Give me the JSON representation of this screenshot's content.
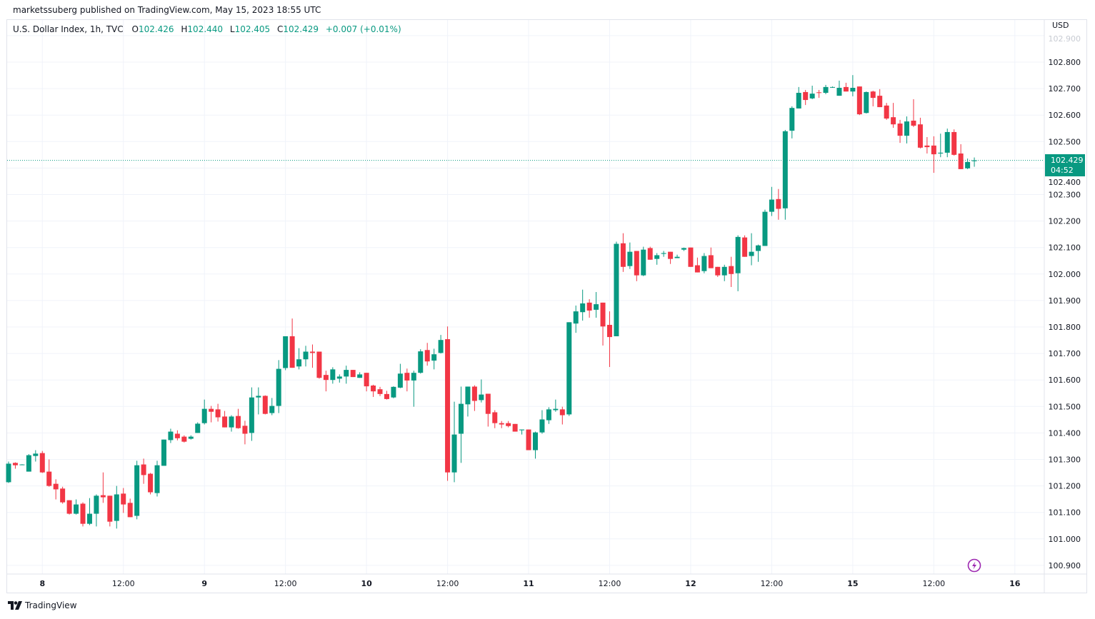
{
  "published": "marketssuberg published on TradingView.com, May 15, 2023 18:55 UTC",
  "legend": {
    "symbol": "U.S. Dollar Index, 1h, TVC",
    "o_label": "O",
    "o": "102.426",
    "h_label": "H",
    "h": "102.440",
    "l_label": "L",
    "l": "102.405",
    "c_label": "C",
    "c": "102.429",
    "change": "+0.007 (+0.01%)"
  },
  "price_axis": {
    "currency": "USD",
    "last_price": "102.429",
    "countdown": "04:52"
  },
  "brand": "TradingView",
  "icons": {
    "snapshot": "lightning-bolt-icon",
    "logo": "tradingview-logo-icon"
  },
  "colors": {
    "up": "#089981",
    "down": "#f23645",
    "grid": "#f0f3fa",
    "lightning": "#9c27b0"
  },
  "chart_data": {
    "type": "candlestick",
    "title": "U.S. Dollar Index, 1h, TVC",
    "ylim": [
      100.87,
      102.93
    ],
    "y_ticks": [
      "100.900",
      "101.000",
      "101.100",
      "101.200",
      "101.300",
      "101.400",
      "101.500",
      "101.600",
      "101.700",
      "101.800",
      "101.900",
      "102.000",
      "102.100",
      "102.200",
      "102.300",
      "102.400",
      "102.500",
      "102.600",
      "102.700",
      "102.800",
      "102.900"
    ],
    "x_ticks": [
      "8",
      "12:00",
      "9",
      "12:00",
      "10",
      "12:00",
      "11",
      "12:00",
      "12",
      "12:00",
      "15",
      "12:00",
      "16"
    ],
    "x_ticks_bold": [
      "8",
      "9",
      "10",
      "11",
      "12",
      "15",
      "16"
    ],
    "grid": true,
    "last_price_line": 102.429,
    "ohlc": [
      [
        101.214,
        101.292,
        101.211,
        101.284
      ],
      [
        101.287,
        101.289,
        101.265,
        101.278
      ],
      [
        101.28,
        101.282,
        101.279,
        101.281
      ],
      [
        101.254,
        101.32,
        101.254,
        101.316
      ],
      [
        101.313,
        101.335,
        101.292,
        101.322
      ],
      [
        101.324,
        101.332,
        101.249,
        101.251
      ],
      [
        101.254,
        101.3,
        101.197,
        101.2
      ],
      [
        101.208,
        101.225,
        101.149,
        101.187
      ],
      [
        101.19,
        101.197,
        101.133,
        101.138
      ],
      [
        101.146,
        101.146,
        101.092,
        101.095
      ],
      [
        101.095,
        101.149,
        101.092,
        101.13
      ],
      [
        101.133,
        101.138,
        101.047,
        101.057
      ],
      [
        101.057,
        101.154,
        101.052,
        101.095
      ],
      [
        101.095,
        101.168,
        101.047,
        101.163
      ],
      [
        101.165,
        101.251,
        101.136,
        101.157
      ],
      [
        101.163,
        101.163,
        101.047,
        101.065
      ],
      [
        101.068,
        101.2,
        101.039,
        101.168
      ],
      [
        101.171,
        101.192,
        101.098,
        101.13
      ],
      [
        101.136,
        101.152,
        101.082,
        101.082
      ],
      [
        101.087,
        101.295,
        101.074,
        101.278
      ],
      [
        101.281,
        101.303,
        101.208,
        101.241
      ],
      [
        101.246,
        101.249,
        101.168,
        101.176
      ],
      [
        101.173,
        101.295,
        101.16,
        101.278
      ],
      [
        101.276,
        101.375,
        101.276,
        101.375
      ],
      [
        101.373,
        101.416,
        101.362,
        101.405
      ],
      [
        101.397,
        101.41,
        101.372,
        101.38
      ],
      [
        101.386,
        101.391,
        101.364,
        101.367
      ],
      [
        101.378,
        101.391,
        101.375,
        101.386
      ],
      [
        101.4,
        101.44,
        101.4,
        101.435
      ],
      [
        101.437,
        101.526,
        101.432,
        101.491
      ],
      [
        101.491,
        101.502,
        101.44,
        101.48
      ],
      [
        101.489,
        101.51,
        101.443,
        101.459
      ],
      [
        101.462,
        101.483,
        101.421,
        101.421
      ],
      [
        101.421,
        101.467,
        101.405,
        101.462
      ],
      [
        101.464,
        101.491,
        101.416,
        101.418
      ],
      [
        101.427,
        101.446,
        101.357,
        101.397
      ],
      [
        101.4,
        101.572,
        101.37,
        101.534
      ],
      [
        101.534,
        101.572,
        101.47,
        101.54
      ],
      [
        101.54,
        101.542,
        101.47,
        101.472
      ],
      [
        101.475,
        101.532,
        101.467,
        101.502
      ],
      [
        101.502,
        101.675,
        101.475,
        101.642
      ],
      [
        101.645,
        101.765,
        101.637,
        101.765
      ],
      [
        101.765,
        101.832,
        101.646,
        101.646
      ],
      [
        101.651,
        101.72,
        101.64,
        101.678
      ],
      [
        101.678,
        101.729,
        101.651,
        101.707
      ],
      [
        101.707,
        101.734,
        101.646,
        101.702
      ],
      [
        101.707,
        101.707,
        101.605,
        101.608
      ],
      [
        101.619,
        101.635,
        101.557,
        101.6
      ],
      [
        101.6,
        101.648,
        101.586,
        101.64
      ],
      [
        101.605,
        101.621,
        101.59,
        101.613
      ],
      [
        101.613,
        101.654,
        101.586,
        101.638
      ],
      [
        101.638,
        101.638,
        101.611,
        101.611
      ],
      [
        101.608,
        101.629,
        101.608,
        101.621
      ],
      [
        101.627,
        101.627,
        101.557,
        101.576
      ],
      [
        101.579,
        101.582,
        101.536,
        101.557
      ],
      [
        101.565,
        101.574,
        101.539,
        101.547
      ],
      [
        101.547,
        101.559,
        101.526,
        101.528
      ],
      [
        101.534,
        101.576,
        101.531,
        101.574
      ],
      [
        101.571,
        101.661,
        101.569,
        101.624
      ],
      [
        101.627,
        101.643,
        101.557,
        101.598
      ],
      [
        101.598,
        101.635,
        101.499,
        101.627
      ],
      [
        101.627,
        101.716,
        101.624,
        101.708
      ],
      [
        101.713,
        101.74,
        101.654,
        101.67
      ],
      [
        101.673,
        101.718,
        101.64,
        101.697
      ],
      [
        101.702,
        101.77,
        101.7,
        101.751
      ],
      [
        101.754,
        101.802,
        101.219,
        101.251
      ],
      [
        101.251,
        101.518,
        101.214,
        101.394
      ],
      [
        101.397,
        101.575,
        101.287,
        101.51
      ],
      [
        101.508,
        101.575,
        101.462,
        101.575
      ],
      [
        101.575,
        101.58,
        101.483,
        101.521
      ],
      [
        101.524,
        101.602,
        101.515,
        101.545
      ],
      [
        101.548,
        101.548,
        101.424,
        101.472
      ],
      [
        101.478,
        101.486,
        101.418,
        101.437
      ],
      [
        101.437,
        101.445,
        101.418,
        101.432
      ],
      [
        101.437,
        101.445,
        101.421,
        101.426
      ],
      [
        101.434,
        101.434,
        101.405,
        101.405
      ],
      [
        101.41,
        101.413,
        101.394,
        101.413
      ],
      [
        101.413,
        101.413,
        101.335,
        101.335
      ],
      [
        101.335,
        101.405,
        101.303,
        101.402
      ],
      [
        101.402,
        101.486,
        101.397,
        101.451
      ],
      [
        101.448,
        101.497,
        101.434,
        101.489
      ],
      [
        101.486,
        101.526,
        101.48,
        101.491
      ],
      [
        101.489,
        101.499,
        101.432,
        101.467
      ],
      [
        101.47,
        101.818,
        101.464,
        101.818
      ],
      [
        101.813,
        101.881,
        101.778,
        101.859
      ],
      [
        101.856,
        101.941,
        101.824,
        101.889
      ],
      [
        101.892,
        101.905,
        101.835,
        101.862
      ],
      [
        101.865,
        101.932,
        101.835,
        101.886
      ],
      [
        101.892,
        101.892,
        101.73,
        101.802
      ],
      [
        101.808,
        101.859,
        101.649,
        101.762
      ],
      [
        101.765,
        102.122,
        101.765,
        102.114
      ],
      [
        102.116,
        102.154,
        102.008,
        102.027
      ],
      [
        102.03,
        102.119,
        102.019,
        102.084
      ],
      [
        102.087,
        102.087,
        101.973,
        101.995
      ],
      [
        101.995,
        102.103,
        101.992,
        102.092
      ],
      [
        102.098,
        102.103,
        102.054,
        102.054
      ],
      [
        102.057,
        102.079,
        102.035,
        102.071
      ],
      [
        102.076,
        102.087,
        102.065,
        102.079
      ],
      [
        102.084,
        102.084,
        102.038,
        102.057
      ],
      [
        102.06,
        102.073,
        102.06,
        102.065
      ],
      [
        102.092,
        102.1,
        102.087,
        102.098
      ],
      [
        102.1,
        102.1,
        102.027,
        102.027
      ],
      [
        102.033,
        102.062,
        102.006,
        102.006
      ],
      [
        102.011,
        102.079,
        102.003,
        102.068
      ],
      [
        102.071,
        102.1,
        102.022,
        102.022
      ],
      [
        102.027,
        102.027,
        101.989,
        101.995
      ],
      [
        101.995,
        102.035,
        101.973,
        102.027
      ],
      [
        102.03,
        102.065,
        101.951,
        102.0
      ],
      [
        102.003,
        102.146,
        101.935,
        102.14
      ],
      [
        102.138,
        102.146,
        102.065,
        102.065
      ],
      [
        102.068,
        102.154,
        102.033,
        102.084
      ],
      [
        102.087,
        102.111,
        102.046,
        102.108
      ],
      [
        102.106,
        102.243,
        102.106,
        102.235
      ],
      [
        102.235,
        102.329,
        102.219,
        102.281
      ],
      [
        102.283,
        102.321,
        102.205,
        102.246
      ],
      [
        102.248,
        102.544,
        102.205,
        102.539
      ],
      [
        102.541,
        102.633,
        102.512,
        102.627
      ],
      [
        102.625,
        102.706,
        102.625,
        102.684
      ],
      [
        102.687,
        102.695,
        102.638,
        102.657
      ],
      [
        102.663,
        102.711,
        102.66,
        102.681
      ],
      [
        102.686,
        102.695,
        102.665,
        102.684
      ],
      [
        102.684,
        102.714,
        102.679,
        102.706
      ],
      [
        102.705,
        102.708,
        102.703,
        102.706
      ],
      [
        102.673,
        102.73,
        102.673,
        102.703
      ],
      [
        102.706,
        102.722,
        102.689,
        102.689
      ],
      [
        102.689,
        102.751,
        102.671,
        102.703
      ],
      [
        102.708,
        102.708,
        102.6,
        102.603
      ],
      [
        102.608,
        102.689,
        102.606,
        102.687
      ],
      [
        102.689,
        102.692,
        102.633,
        102.665
      ],
      [
        102.673,
        102.698,
        102.63,
        102.63
      ],
      [
        102.636,
        102.646,
        102.582,
        102.587
      ],
      [
        102.592,
        102.646,
        102.552,
        102.565
      ],
      [
        102.568,
        102.582,
        102.495,
        102.522
      ],
      [
        102.522,
        102.595,
        102.493,
        102.576
      ],
      [
        102.579,
        102.66,
        102.555,
        102.56
      ],
      [
        102.565,
        102.59,
        102.474,
        102.477
      ],
      [
        102.485,
        102.517,
        102.455,
        102.479
      ],
      [
        102.485,
        102.52,
        102.382,
        102.452
      ],
      [
        102.455,
        102.53,
        102.441,
        102.458
      ],
      [
        102.458,
        102.549,
        102.441,
        102.536
      ],
      [
        102.536,
        102.546,
        102.447,
        102.45
      ],
      [
        102.455,
        102.49,
        102.396,
        102.396
      ],
      [
        102.399,
        102.436,
        102.396,
        102.423
      ],
      [
        102.426,
        102.44,
        102.405,
        102.429
      ]
    ]
  }
}
